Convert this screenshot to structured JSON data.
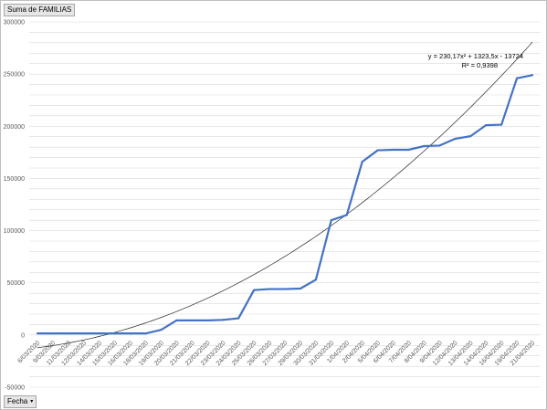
{
  "field_button": {
    "label": "Suma de FAMILIAS"
  },
  "axis_button": {
    "label": "Fecha",
    "dropdown_glyph": "▾"
  },
  "chart_data": {
    "type": "line",
    "title": "",
    "xlabel": "",
    "ylabel": "",
    "ylim": [
      -50000,
      300000
    ],
    "yticks": [
      300000,
      250000,
      200000,
      150000,
      100000,
      50000,
      0,
      -50000
    ],
    "ytick_labels": [
      "300000",
      "250000",
      "200000",
      "150000",
      "100000",
      "50000",
      "0",
      "-50000"
    ],
    "x_tick_labels": [
      "6/03/2020",
      "9/03/2020",
      "11/03/2020",
      "12/03/2020",
      "14/03/2020",
      "15/03/2020",
      "16/03/2020",
      "18/03/2020",
      "19/03/2020",
      "20/03/2020",
      "21/03/2020",
      "22/03/2020",
      "23/03/2020",
      "24/03/2020",
      "25/03/2020",
      "26/03/2020",
      "27/03/2020",
      "29/03/2020",
      "30/03/2020",
      "31/03/2020",
      "1/04/2020",
      "2/04/2020",
      "5/04/2020",
      "6/04/2020",
      "7/04/2020",
      "8/04/2020",
      "9/04/2020",
      "12/04/2020",
      "13/04/2020",
      "14/04/2020",
      "16/04/2020",
      "19/04/2020",
      "21/04/2020"
    ],
    "series": [
      {
        "values": [
          1500,
          1500,
          1500,
          1500,
          1500,
          1500,
          1500,
          1500,
          5000,
          14000,
          14000,
          14000,
          14500,
          16000,
          43000,
          44000,
          44000,
          44500,
          53000,
          110000,
          115000,
          166000,
          177000,
          177500,
          177500,
          181000,
          181500,
          188000,
          190500,
          201000,
          201500,
          246000,
          249000
        ]
      }
    ],
    "trendline": {
      "type": "polynomial",
      "order": 2,
      "coefficients": [
        230.17,
        1323.5,
        -13724
      ],
      "equation": "y = 230,17x² + 1323,5x - 13724",
      "r_squared": "R² = 0,9398"
    },
    "grid": true,
    "legend": "none",
    "colors": {
      "series": "#4472c4",
      "trendline": "#262626",
      "grid": "#d9d9d9"
    }
  }
}
